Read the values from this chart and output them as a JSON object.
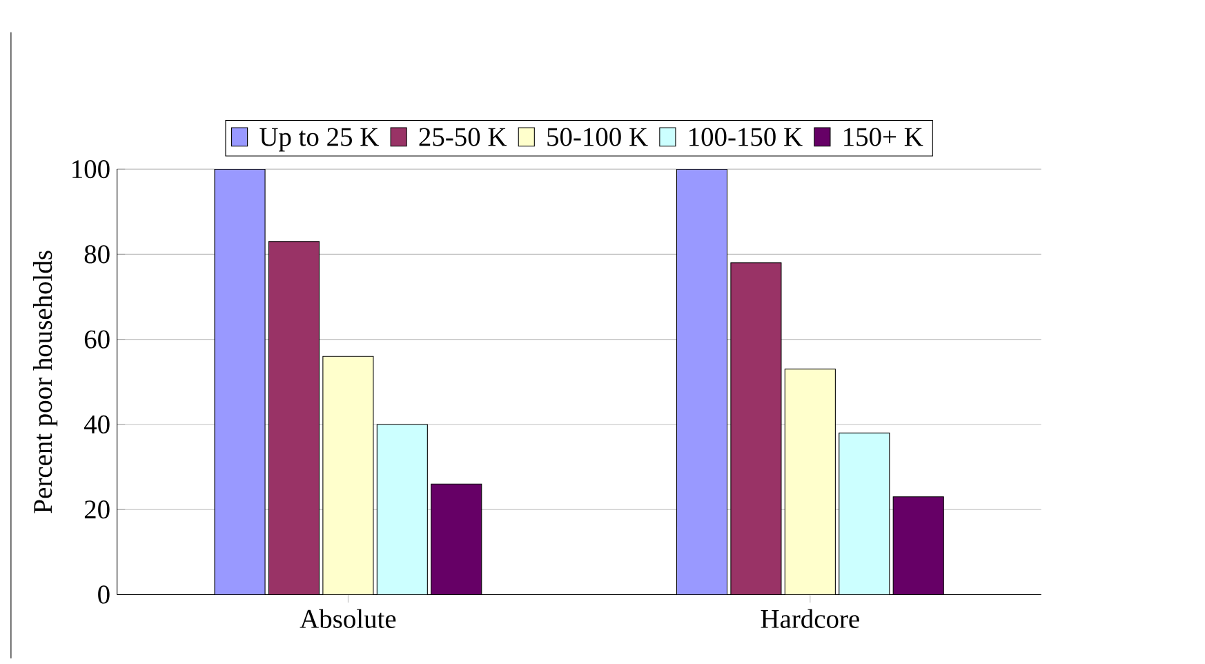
{
  "chart_data": {
    "type": "bar",
    "ylabel": "Percent poor households",
    "categories": [
      "Absolute",
      "Hardcore"
    ],
    "series": [
      {
        "name": "Up to 25 K",
        "color": "#9999ff",
        "values": [
          100,
          100
        ]
      },
      {
        "name": "25-50 K",
        "color": "#993366",
        "values": [
          83,
          78
        ]
      },
      {
        "name": "50-100 K",
        "color": "#ffffcc",
        "values": [
          56,
          53
        ]
      },
      {
        "name": "100-150 K",
        "color": "#ccffff",
        "values": [
          40,
          38
        ]
      },
      {
        "name": "150+ K",
        "color": "#660066",
        "values": [
          26,
          23
        ]
      }
    ],
    "ylim": [
      0,
      100
    ],
    "yticks": [
      0,
      20,
      40,
      60,
      80,
      100
    ],
    "grid": "y",
    "legend": "top"
  }
}
